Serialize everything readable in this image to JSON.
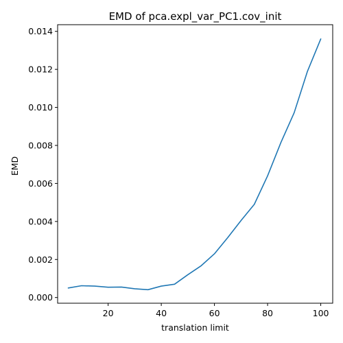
{
  "chart_data": {
    "type": "line",
    "title": "EMD of pca.expl_var_PC1.cov_init",
    "xlabel": "translation limit",
    "ylabel": "EMD",
    "xlim": [
      1,
      104.5
    ],
    "ylim": [
      -0.0003,
      0.01435
    ],
    "xticks": [
      20,
      40,
      60,
      80,
      100
    ],
    "xtick_labels": [
      "20",
      "40",
      "60",
      "80",
      "100"
    ],
    "yticks": [
      0.0,
      0.002,
      0.004,
      0.006,
      0.008,
      0.01,
      0.012,
      0.014
    ],
    "ytick_labels": [
      "0.000",
      "0.002",
      "0.004",
      "0.006",
      "0.008",
      "0.010",
      "0.012",
      "0.014"
    ],
    "grid": false,
    "series": [
      {
        "color": "#1f77b4",
        "x": [
          5,
          10,
          15,
          20,
          25,
          30,
          35,
          40,
          45,
          50,
          55,
          60,
          65,
          70,
          75,
          80,
          85,
          90,
          95,
          100
        ],
        "y": [
          0.0005,
          0.00062,
          0.0006,
          0.00054,
          0.00055,
          0.00046,
          0.00041,
          0.0006,
          0.0007,
          0.0012,
          0.00167,
          0.0023,
          0.00315,
          0.00405,
          0.0049,
          0.0064,
          0.00815,
          0.00972,
          0.0119,
          0.0136
        ]
      }
    ]
  }
}
